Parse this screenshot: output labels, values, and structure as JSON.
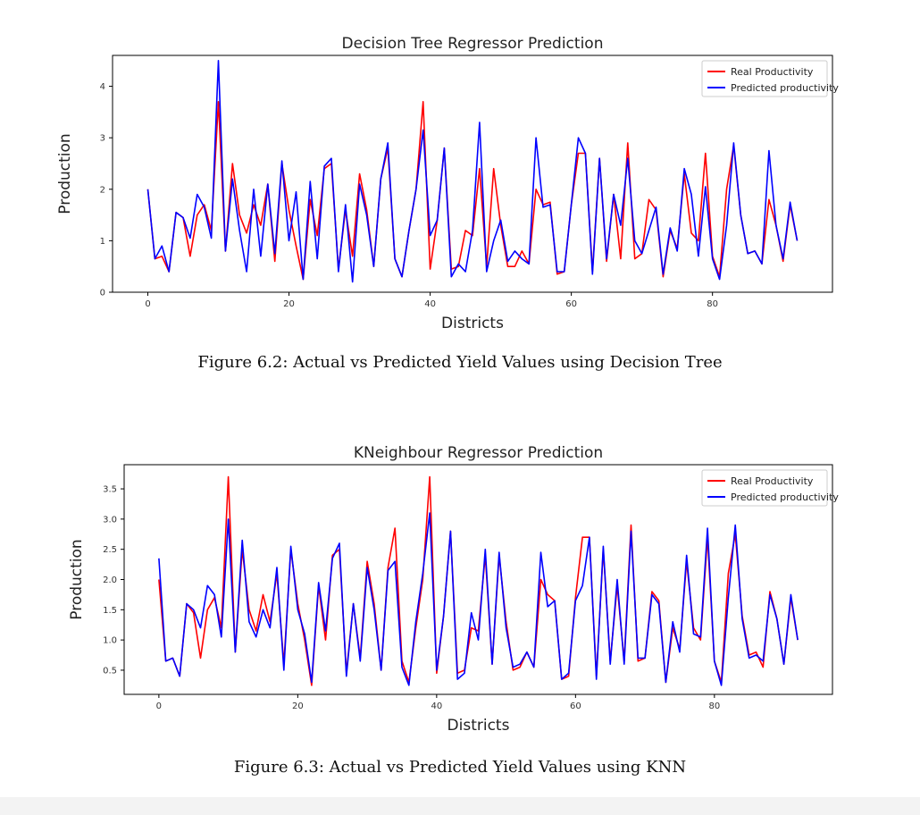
{
  "chart_data": [
    {
      "type": "line",
      "title": "Decision Tree Regressor Prediction",
      "xlabel": "Districts",
      "ylabel": "Production",
      "xlim": [
        -5,
        97
      ],
      "ylim": [
        0,
        4.6
      ],
      "xticks": [
        0,
        20,
        40,
        60,
        80
      ],
      "yticks": [
        0,
        1,
        2,
        3,
        4
      ],
      "legend_position": "top-right",
      "caption": "Figure 6.2: Actual vs Predicted Yield Values using Decision Tree",
      "x": [
        0,
        1,
        2,
        3,
        4,
        5,
        6,
        7,
        8,
        9,
        10,
        11,
        12,
        13,
        14,
        15,
        16,
        17,
        18,
        19,
        20,
        21,
        22,
        23,
        24,
        25,
        26,
        27,
        28,
        29,
        30,
        31,
        32,
        33,
        34,
        35,
        36,
        37,
        38,
        39,
        40,
        41,
        42,
        43,
        44,
        45,
        46,
        47,
        48,
        49,
        50,
        51,
        52,
        53,
        54,
        55,
        56,
        57,
        58,
        59,
        60,
        61,
        62,
        63,
        64,
        65,
        66,
        67,
        68,
        69,
        70,
        71,
        72,
        73,
        74,
        75,
        76,
        77,
        78,
        79,
        80,
        81,
        82,
        83,
        84,
        85,
        86,
        87,
        88,
        89,
        90,
        91,
        92
      ],
      "series": [
        {
          "name": "Real Productivity",
          "color": "#ff0000",
          "values": [
            2.0,
            0.65,
            0.7,
            0.4,
            1.55,
            1.45,
            0.7,
            1.5,
            1.7,
            1.2,
            3.7,
            0.8,
            2.5,
            1.5,
            1.15,
            1.7,
            1.3,
            2.1,
            0.6,
            2.5,
            1.6,
            0.9,
            0.25,
            1.8,
            1.1,
            2.4,
            2.5,
            0.45,
            1.6,
            0.7,
            2.3,
            1.6,
            0.5,
            2.2,
            2.8,
            0.65,
            0.3,
            1.2,
            2.0,
            3.7,
            0.45,
            1.4,
            2.8,
            0.45,
            0.5,
            1.2,
            1.1,
            2.4,
            0.5,
            2.4,
            1.3,
            0.5,
            0.5,
            0.8,
            0.55,
            2.0,
            1.7,
            1.75,
            0.35,
            0.4,
            1.7,
            2.7,
            2.7,
            0.4,
            2.6,
            0.6,
            1.9,
            0.65,
            2.9,
            0.65,
            0.75,
            1.8,
            1.6,
            0.3,
            1.2,
            0.85,
            2.3,
            1.15,
            1.0,
            2.7,
            0.7,
            0.3,
            2.0,
            2.85,
            1.5,
            0.75,
            0.8,
            0.55,
            1.8,
            1.3,
            0.6,
            1.7,
            1.0
          ]
        },
        {
          "name": "Predicted productivity",
          "color": "#0000ff",
          "values": [
            2.0,
            0.65,
            0.9,
            0.4,
            1.55,
            1.45,
            1.05,
            1.9,
            1.65,
            1.05,
            4.5,
            0.8,
            2.2,
            1.2,
            0.4,
            2.0,
            0.7,
            2.1,
            0.75,
            2.55,
            1.0,
            1.95,
            0.25,
            2.15,
            0.65,
            2.45,
            2.6,
            0.4,
            1.7,
            0.2,
            2.1,
            1.5,
            0.5,
            2.2,
            2.9,
            0.65,
            0.3,
            1.2,
            2.0,
            3.15,
            1.1,
            1.4,
            2.8,
            0.3,
            0.55,
            0.4,
            1.2,
            3.3,
            0.4,
            1.0,
            1.4,
            0.6,
            0.8,
            0.65,
            0.55,
            3.0,
            1.65,
            1.7,
            0.4,
            0.4,
            1.7,
            3.0,
            2.7,
            0.35,
            2.6,
            0.65,
            1.9,
            1.3,
            2.6,
            1.0,
            0.75,
            1.2,
            1.65,
            0.35,
            1.25,
            0.8,
            2.4,
            1.9,
            0.7,
            2.05,
            0.65,
            0.25,
            1.3,
            2.9,
            1.5,
            0.75,
            0.8,
            0.55,
            2.75,
            1.3,
            0.65,
            1.75,
            1.0
          ]
        }
      ]
    },
    {
      "type": "line",
      "title": "KNeighbour Regressor Prediction",
      "xlabel": "Districts",
      "ylabel": "Production",
      "xlim": [
        -5,
        97
      ],
      "ylim": [
        0.1,
        3.9
      ],
      "xticks": [
        0,
        20,
        40,
        60,
        80
      ],
      "yticks": [
        0.5,
        1.0,
        1.5,
        2.0,
        2.5,
        3.0,
        3.5
      ],
      "legend_position": "top-right",
      "caption": "Figure 6.3: Actual vs Predicted Yield Values using KNN",
      "x": [
        0,
        1,
        2,
        3,
        4,
        5,
        6,
        7,
        8,
        9,
        10,
        11,
        12,
        13,
        14,
        15,
        16,
        17,
        18,
        19,
        20,
        21,
        22,
        23,
        24,
        25,
        26,
        27,
        28,
        29,
        30,
        31,
        32,
        33,
        34,
        35,
        36,
        37,
        38,
        39,
        40,
        41,
        42,
        43,
        44,
        45,
        46,
        47,
        48,
        49,
        50,
        51,
        52,
        53,
        54,
        55,
        56,
        57,
        58,
        59,
        60,
        61,
        62,
        63,
        64,
        65,
        66,
        67,
        68,
        69,
        70,
        71,
        72,
        73,
        74,
        75,
        76,
        77,
        78,
        79,
        80,
        81,
        82,
        83,
        84,
        85,
        86,
        87,
        88,
        89,
        90,
        91,
        92
      ],
      "series": [
        {
          "name": "Real Productivity",
          "color": "#ff0000",
          "values": [
            2.0,
            0.65,
            0.7,
            0.4,
            1.6,
            1.45,
            0.7,
            1.5,
            1.7,
            1.2,
            3.7,
            0.8,
            2.5,
            1.5,
            1.15,
            1.75,
            1.3,
            2.1,
            0.6,
            2.5,
            1.6,
            1.0,
            0.25,
            1.9,
            1.0,
            2.4,
            2.5,
            0.45,
            1.6,
            0.7,
            2.3,
            1.6,
            0.5,
            2.2,
            2.85,
            0.65,
            0.3,
            1.2,
            2.0,
            3.7,
            0.45,
            1.4,
            2.8,
            0.45,
            0.5,
            1.2,
            1.15,
            2.4,
            0.6,
            2.4,
            1.3,
            0.5,
            0.55,
            0.8,
            0.55,
            2.0,
            1.75,
            1.65,
            0.35,
            0.4,
            1.7,
            2.7,
            2.7,
            0.4,
            2.5,
            0.65,
            1.9,
            0.65,
            2.9,
            0.65,
            0.7,
            1.8,
            1.65,
            0.3,
            1.2,
            0.85,
            2.3,
            1.2,
            1.0,
            2.7,
            0.65,
            0.3,
            2.1,
            2.75,
            1.4,
            0.75,
            0.8,
            0.55,
            1.8,
            1.35,
            0.6,
            1.7,
            1.0
          ]
        },
        {
          "name": "Predicted productivity",
          "color": "#0000ff",
          "values": [
            2.35,
            0.65,
            0.7,
            0.4,
            1.6,
            1.5,
            1.2,
            1.9,
            1.75,
            1.05,
            3.0,
            0.8,
            2.65,
            1.3,
            1.05,
            1.5,
            1.2,
            2.2,
            0.5,
            2.55,
            1.5,
            1.1,
            0.3,
            1.95,
            1.15,
            2.35,
            2.6,
            0.4,
            1.6,
            0.65,
            2.2,
            1.5,
            0.5,
            2.15,
            2.3,
            0.55,
            0.25,
            1.3,
            2.1,
            3.1,
            0.5,
            1.4,
            2.8,
            0.35,
            0.45,
            1.45,
            1.0,
            2.5,
            0.6,
            2.45,
            1.2,
            0.55,
            0.6,
            0.8,
            0.55,
            2.45,
            1.55,
            1.65,
            0.35,
            0.45,
            1.65,
            1.9,
            2.7,
            0.35,
            2.55,
            0.6,
            2.0,
            0.6,
            2.8,
            0.7,
            0.7,
            1.75,
            1.6,
            0.3,
            1.3,
            0.8,
            2.4,
            1.1,
            1.05,
            2.85,
            0.65,
            0.25,
            1.7,
            2.9,
            1.35,
            0.7,
            0.75,
            0.65,
            1.75,
            1.35,
            0.6,
            1.75,
            1.0
          ]
        }
      ]
    }
  ]
}
